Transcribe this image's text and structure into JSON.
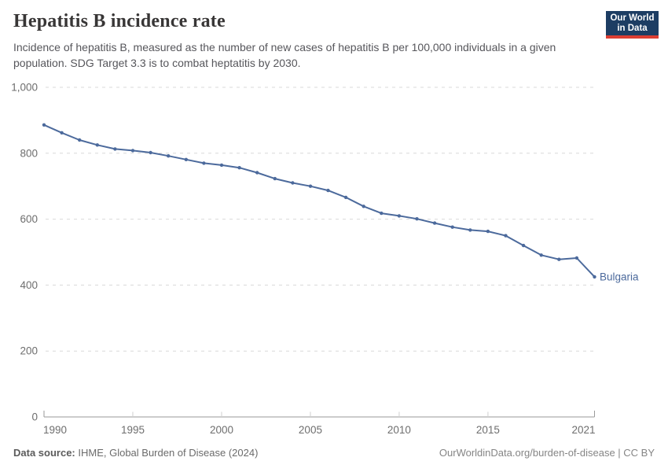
{
  "header": {
    "title": "Hepatitis B incidence rate",
    "subtitle": "Incidence of hepatitis B, measured as the number of new cases of hepatitis B per 100,000 individuals in a given population. SDG Target 3.3 is to combat heptatitis by 2030.",
    "logo": {
      "line1": "Our World",
      "line2": "in Data",
      "bg_color": "#1d3d63",
      "stripe_color": "#dc3e32"
    }
  },
  "chart_data": {
    "type": "line",
    "title": "Hepatitis B incidence rate",
    "unit": "new cases of hepatitis B per 100,000 individuals",
    "x": [
      1990,
      1991,
      1992,
      1993,
      1994,
      1995,
      1996,
      1997,
      1998,
      1999,
      2000,
      2001,
      2002,
      2003,
      2004,
      2005,
      2006,
      2007,
      2008,
      2009,
      2010,
      2011,
      2012,
      2013,
      2014,
      2015,
      2016,
      2017,
      2018,
      2019,
      2020,
      2021
    ],
    "series": [
      {
        "name": "Bulgaria",
        "color": "#4c6a9c",
        "values": [
          886,
          862,
          840,
          825,
          813,
          808,
          802,
          792,
          781,
          770,
          764,
          756,
          741,
          723,
          710,
          700,
          687,
          666,
          639,
          618,
          610,
          601,
          588,
          576,
          567,
          563,
          550,
          520,
          491,
          478,
          482,
          425
        ]
      }
    ],
    "xlim": [
      1990,
      2021
    ],
    "ylim": [
      0,
      1000
    ],
    "xticks": [
      1990,
      1995,
      2000,
      2005,
      2010,
      2015,
      2021
    ],
    "yticks": [
      {
        "value": 0,
        "label": "0"
      },
      {
        "value": 200,
        "label": "200"
      },
      {
        "value": 400,
        "label": "400"
      },
      {
        "value": 600,
        "label": "600"
      },
      {
        "value": 800,
        "label": "800"
      },
      {
        "value": 1000,
        "label": "1,000"
      }
    ],
    "grid": "horizontal-dashed",
    "legend_position": "end-of-line-label",
    "end_label": "Bulgaria",
    "colors": {
      "gridline": "#d9d9d9",
      "axis": "#9a9a9a",
      "tick": "#cfcfcf",
      "tick_text": "#6e6e6e"
    }
  },
  "footer": {
    "source_prefix": "Data source:",
    "source_text": " IHME, Global Burden of Disease (2024)",
    "credit": "OurWorldinData.org/burden-of-disease | CC BY"
  }
}
